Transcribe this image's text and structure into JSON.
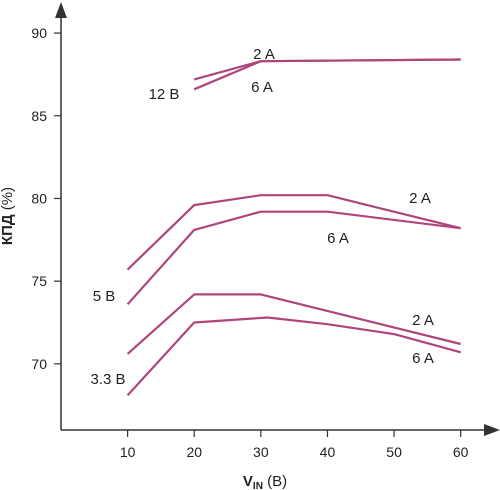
{
  "chart_data": {
    "type": "line",
    "title": "",
    "xlabel": {
      "main": "V",
      "sub": "IN",
      "unit": " (В)"
    },
    "ylabel": {
      "main": "КПД",
      "unit": " (%)"
    },
    "xlim": [
      0,
      65
    ],
    "ylim": [
      66,
      92
    ],
    "xticks": [
      10,
      20,
      30,
      40,
      50,
      60
    ],
    "yticks": [
      70,
      75,
      80,
      85,
      90
    ],
    "grid": false,
    "line_color": "#b0457d",
    "series": [
      {
        "x": [
          20,
          30,
          60
        ],
        "y": [
          87.2,
          88.3,
          88.4
        ]
      },
      {
        "x": [
          20,
          30,
          60
        ],
        "y": [
          86.6,
          88.3,
          88.4
        ]
      },
      {
        "x": [
          10,
          20,
          30,
          40,
          60
        ],
        "y": [
          75.7,
          79.6,
          80.2,
          80.2,
          78.2
        ]
      },
      {
        "x": [
          10,
          20,
          30,
          40,
          60
        ],
        "y": [
          73.6,
          78.1,
          79.2,
          79.2,
          78.2
        ]
      },
      {
        "x": [
          10,
          20,
          30,
          60
        ],
        "y": [
          70.6,
          74.2,
          74.2,
          71.2
        ]
      },
      {
        "x": [
          10,
          20,
          31,
          40,
          50,
          60
        ],
        "y": [
          68.1,
          72.5,
          72.8,
          72.4,
          71.8,
          70.7
        ]
      }
    ],
    "annotations": [
      "2 A",
      "6 A",
      "12 В",
      "2 A",
      "6 A",
      "5 В",
      "2 A",
      "6 A",
      "3.3 В"
    ]
  }
}
